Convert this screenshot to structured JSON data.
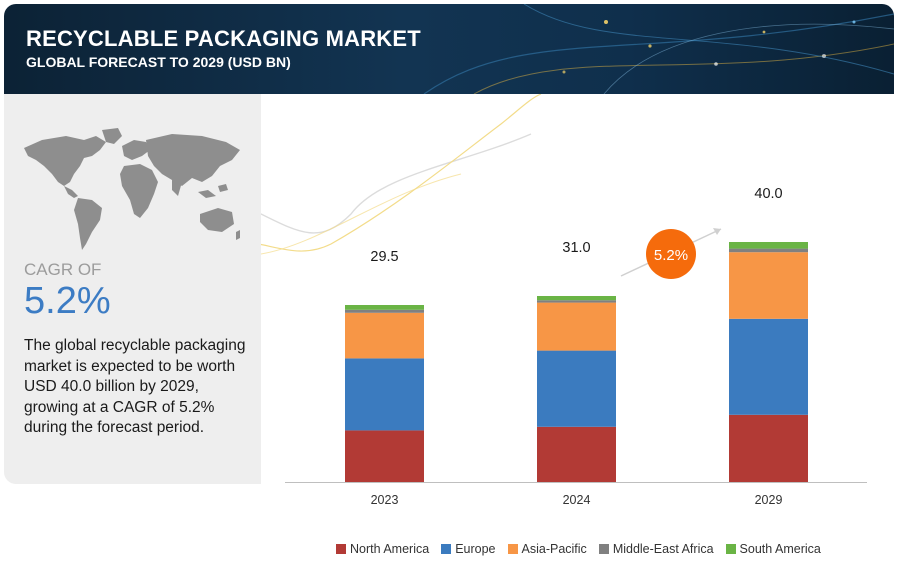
{
  "header": {
    "title": "RECYCLABLE PACKAGING MARKET",
    "subtitle": "GLOBAL FORECAST TO 2029 (USD BN)"
  },
  "summary": {
    "cagr_label": "CAGR OF",
    "cagr_value": "5.2%",
    "description": "The global recyclable packaging market is expected to be worth USD 40.0 billion by 2029, growing at a CAGR of 5.2% during the forecast period.",
    "map_icon": "world-map-icon"
  },
  "chart_data": {
    "type": "bar",
    "stacked": true,
    "categories": [
      "2023",
      "2024",
      "2029"
    ],
    "totals": [
      "29.5",
      "31.0",
      "40.0"
    ],
    "total_values": [
      29.5,
      31.0,
      40.0
    ],
    "growth_badge": "5.2%",
    "series": [
      {
        "name": "North America",
        "color": "#b23a35",
        "values": [
          8.6,
          9.2,
          11.2
        ]
      },
      {
        "name": "Europe",
        "color": "#3b7bbf",
        "values": [
          12.0,
          12.7,
          16.0
        ]
      },
      {
        "name": "Asia-Pacific",
        "color": "#f79646",
        "values": [
          7.6,
          8.0,
          11.1
        ]
      },
      {
        "name": "Middle-East Africa",
        "color": "#808080",
        "values": [
          0.5,
          0.4,
          0.6
        ]
      },
      {
        "name": "South America",
        "color": "#6ab445",
        "values": [
          0.8,
          0.7,
          1.1
        ]
      }
    ],
    "ylim": [
      0,
      40
    ],
    "grid": false,
    "legend_position": "bottom",
    "accent_color": "#f56b0c"
  }
}
